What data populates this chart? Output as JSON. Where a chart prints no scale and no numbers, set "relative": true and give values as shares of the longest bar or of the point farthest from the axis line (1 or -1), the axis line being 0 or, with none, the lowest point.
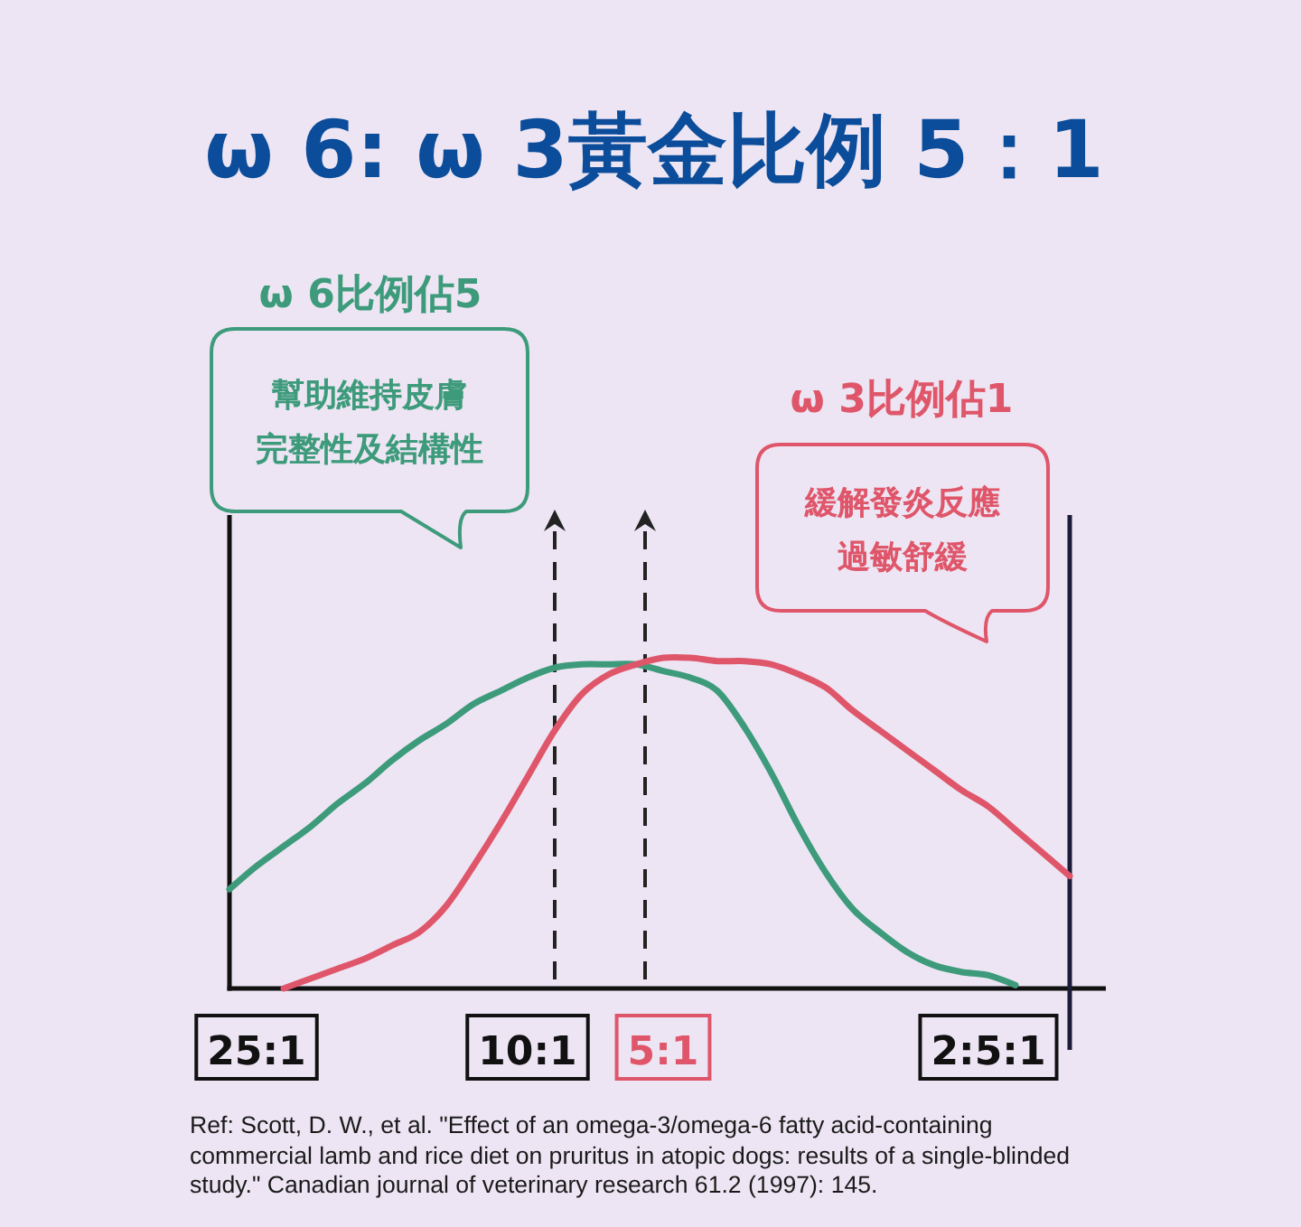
{
  "chart_data": {
    "type": "line",
    "title": "ω 6: ω 3黃金比例 5：1",
    "relative": true,
    "categories": [
      null,
      "25:1",
      null,
      null,
      null,
      null,
      null,
      null,
      null,
      null,
      null,
      "10:1",
      null,
      null,
      null,
      null,
      "5:1",
      null,
      null,
      null,
      null,
      null,
      null,
      null,
      null,
      null,
      null,
      null,
      "2:5:1",
      null,
      null,
      null
    ],
    "series": [
      {
        "name": "ω 6比例佔5",
        "color": "#3d9b7b",
        "values": [
          0.3,
          0.37,
          0.43,
          0.49,
          0.56,
          0.62,
          0.69,
          0.75,
          0.8,
          0.86,
          0.9,
          0.94,
          0.97,
          0.98,
          0.98,
          0.98,
          0.96,
          0.94,
          0.9,
          0.79,
          0.65,
          0.49,
          0.35,
          0.24,
          0.17,
          0.11,
          0.07,
          0.05,
          0.04,
          0.01,
          null,
          null
        ]
      },
      {
        "name": "ω 3比例佔1",
        "color": "#df566a",
        "values": [
          null,
          null,
          0.0,
          0.03,
          0.06,
          0.09,
          0.13,
          0.17,
          0.25,
          0.37,
          0.5,
          0.64,
          0.78,
          0.89,
          0.95,
          0.98,
          1.0,
          1.0,
          0.99,
          0.99,
          0.98,
          0.95,
          0.91,
          0.84,
          0.78,
          0.72,
          0.66,
          0.6,
          0.55,
          0.48,
          0.41,
          0.34
        ]
      }
    ],
    "annotations": [
      "幫助維持皮膚完整性及結構性",
      "緩解發炎反應過敏舒緩",
      "Ref: Scott, D. W., et al. \"Effect of an omega-3/omega-6 fatty acid-containing commercial lamb and rice diet on pruritus in atopic dogs: results of a single-blinded study.\" Canadian journal of veterinary research 61.2 (1997): 145."
    ]
  }
}
